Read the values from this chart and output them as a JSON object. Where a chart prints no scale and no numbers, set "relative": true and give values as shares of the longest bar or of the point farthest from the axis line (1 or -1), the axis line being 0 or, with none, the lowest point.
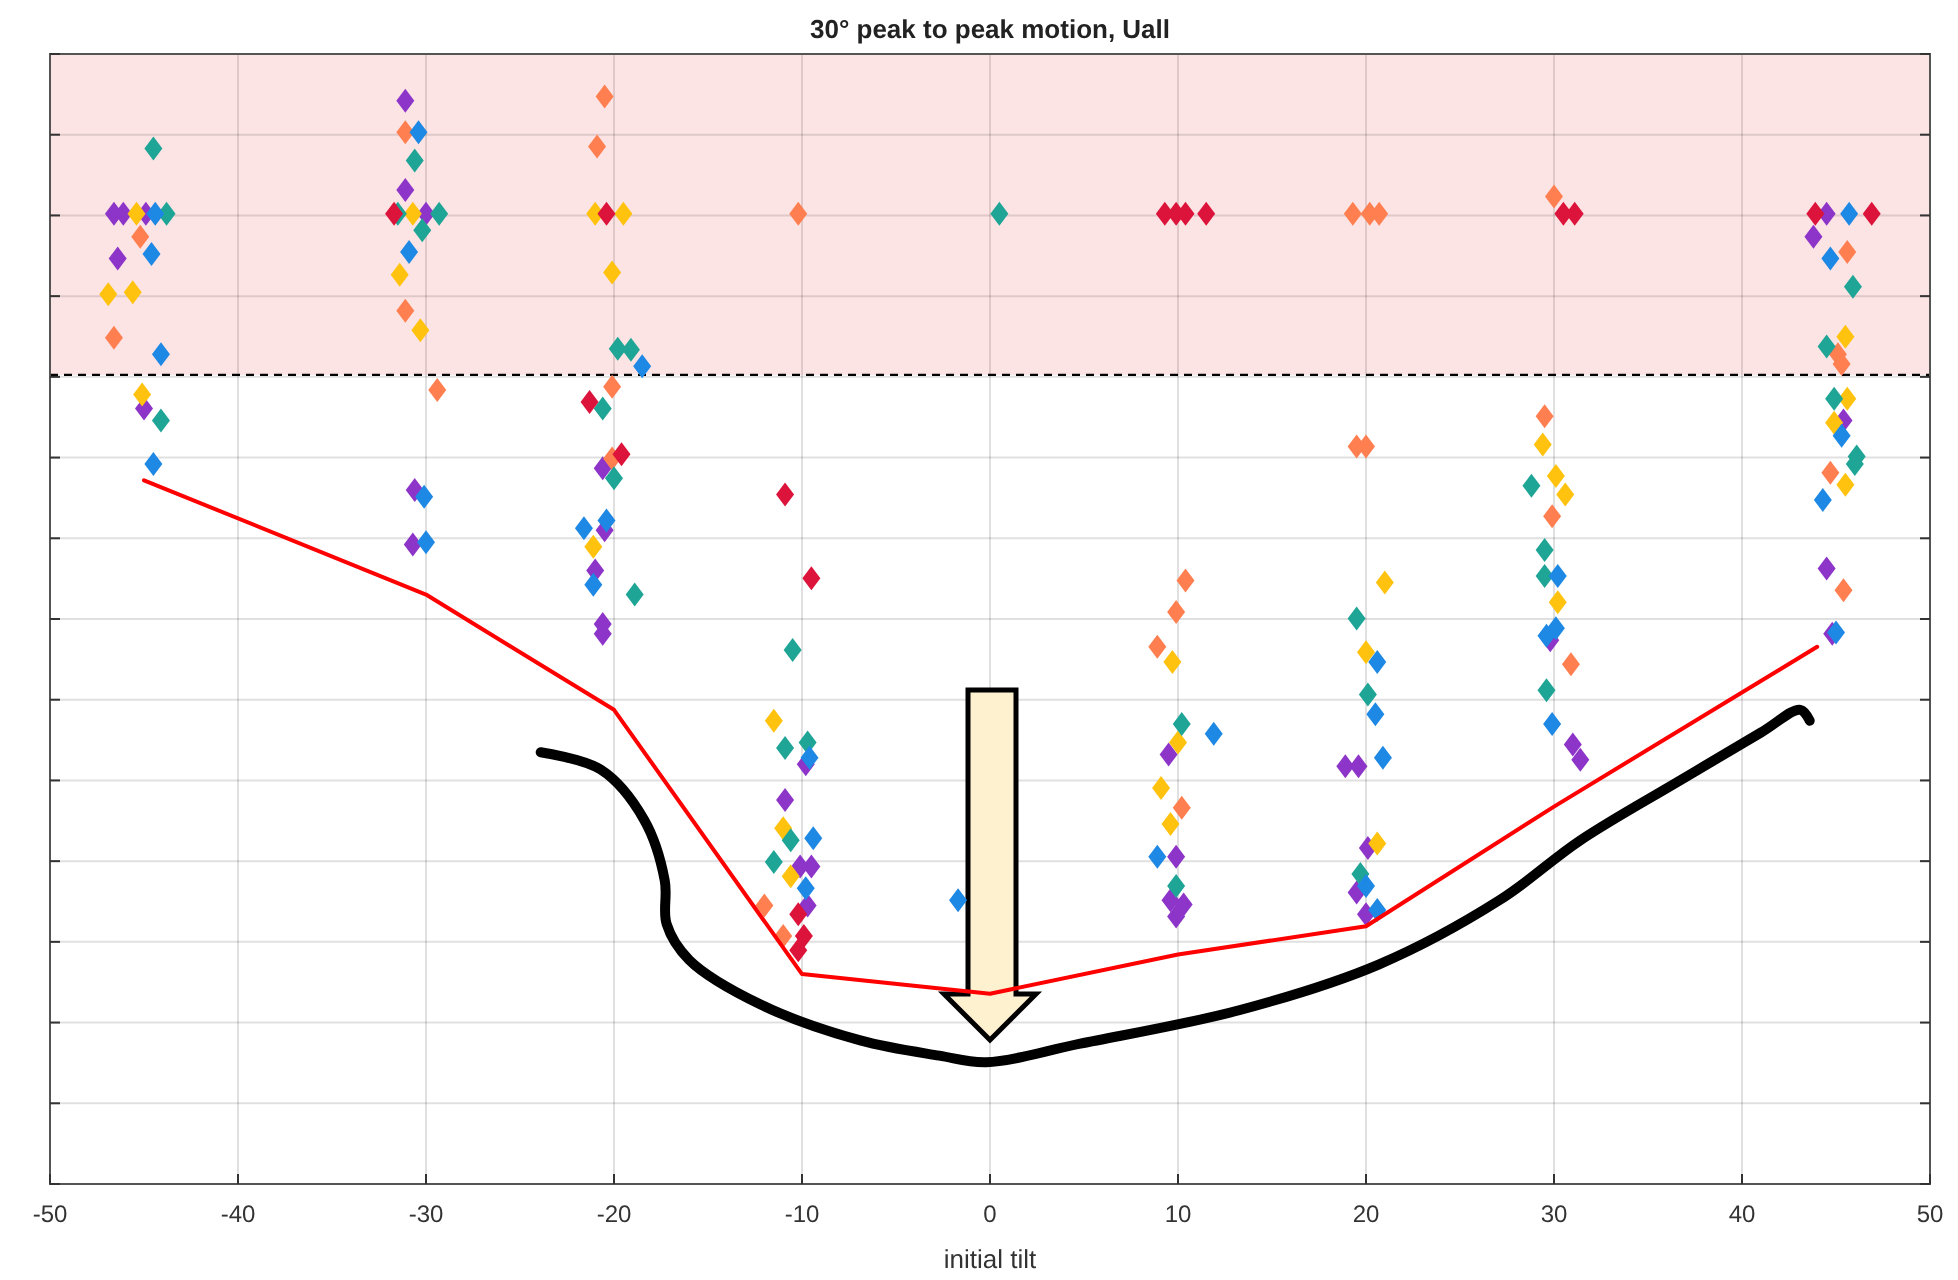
{
  "chart_data": {
    "type": "scatter",
    "title": "30° peak to peak motion, Uall",
    "xlabel": "initial tilt",
    "relative": true,
    "marker": "diamond",
    "grid": true,
    "xlim": [
      -50,
      50
    ],
    "xticks": [
      -50,
      -40,
      -30,
      -20,
      -10,
      0,
      10,
      20,
      30,
      40,
      50
    ],
    "bands": [
      {
        "axis": "y",
        "from": 0.744,
        "to": 1.039,
        "color": "#fde4e4"
      }
    ],
    "ref_lines": [
      {
        "axis": "y",
        "value": 0.744,
        "line_style": "dashed",
        "color": "#000000"
      }
    ],
    "series": [
      {
        "color": "#8e35c9",
        "x": [
          -46.6,
          -46.1,
          -44.9,
          -46.4,
          -45.0,
          -31.1,
          -31.1,
          -30.0,
          -30.6,
          -30.7,
          -20.6,
          -20.5,
          -21.0,
          -20.6,
          -20.6,
          -9.8,
          -10.9,
          -10.1,
          -9.5,
          -9.7,
          9.5,
          9.9,
          9.6,
          10.3,
          9.9,
          18.9,
          19.6,
          20.1,
          19.5,
          20.0,
          29.8,
          31.0,
          31.4,
          44.5,
          43.8,
          45.4,
          44.5,
          44.8
        ],
        "values": [
          0.892,
          0.892,
          0.892,
          0.851,
          0.713,
          0.996,
          0.914,
          0.892,
          0.638,
          0.588,
          0.658,
          0.601,
          0.564,
          0.515,
          0.506,
          0.386,
          0.353,
          0.292,
          0.292,
          0.256,
          0.395,
          0.301,
          0.261,
          0.257,
          0.246,
          0.384,
          0.384,
          0.309,
          0.268,
          0.248,
          0.5,
          0.404,
          0.39,
          0.892,
          0.871,
          0.702,
          0.566,
          0.506
        ]
      },
      {
        "color": "#ff7f50",
        "x": [
          -45.2,
          -46.6,
          -31.1,
          -31.1,
          -29.4,
          -20.5,
          -20.9,
          -20.1,
          -20.1,
          -10.2,
          -12.0,
          -11.0,
          10.4,
          9.9,
          8.9,
          10.2,
          19.3,
          20.2,
          20.7,
          20.0,
          19.5,
          30.0,
          29.5,
          29.9,
          30.9,
          45.6,
          45.1,
          45.3,
          44.7,
          45.4
        ],
        "values": [
          0.871,
          0.778,
          0.967,
          0.803,
          0.73,
          1,
          0.954,
          0.733,
          0.667,
          0.892,
          0.256,
          0.228,
          0.555,
          0.526,
          0.494,
          0.346,
          0.892,
          0.892,
          0.892,
          0.678,
          0.678,
          0.908,
          0.706,
          0.614,
          0.478,
          0.857,
          0.763,
          0.754,
          0.654,
          0.546
        ]
      },
      {
        "color": "#ffc20e",
        "x": [
          -45.4,
          -46.9,
          -45.6,
          -45.1,
          -30.7,
          -31.4,
          -30.3,
          -21.0,
          -19.5,
          -20.1,
          -21.1,
          -11.5,
          -11.0,
          -10.6,
          9.7,
          10.0,
          9.1,
          9.6,
          21.0,
          20.0,
          20.6,
          29.4,
          30.1,
          30.6,
          30.2,
          45.5,
          45.6,
          44.9,
          45.5
        ],
        "values": [
          0.892,
          0.818,
          0.82,
          0.726,
          0.892,
          0.836,
          0.785,
          0.892,
          0.892,
          0.838,
          0.586,
          0.426,
          0.327,
          0.283,
          0.48,
          0.406,
          0.364,
          0.331,
          0.553,
          0.489,
          0.313,
          0.68,
          0.651,
          0.634,
          0.535,
          0.779,
          0.722,
          0.7,
          0.643
        ]
      },
      {
        "color": "#1fa596",
        "x": [
          -44.5,
          -43.8,
          -44.1,
          -30.6,
          -31.5,
          -29.3,
          -30.2,
          -19.8,
          -19.1,
          -20.6,
          -20.0,
          -18.9,
          -10.5,
          -10.9,
          -9.7,
          -10.6,
          -11.5,
          0.5,
          10.2,
          9.9,
          19.5,
          20.1,
          19.7,
          28.8,
          29.5,
          29.5,
          29.6,
          45.9,
          44.5,
          44.9,
          46.1,
          46.0
        ],
        "values": [
          0.952,
          0.892,
          0.702,
          0.941,
          0.892,
          0.892,
          0.877,
          0.768,
          0.767,
          0.713,
          0.649,
          0.542,
          0.491,
          0.401,
          0.406,
          0.316,
          0.296,
          0.892,
          0.423,
          0.274,
          0.52,
          0.45,
          0.285,
          0.642,
          0.583,
          0.559,
          0.454,
          0.825,
          0.77,
          0.722,
          0.669,
          0.662
        ]
      },
      {
        "color": "#1e88e5",
        "x": [
          -44.4,
          -44.6,
          -44.1,
          -44.5,
          -30.4,
          -30.9,
          -30.1,
          -30.0,
          -18.5,
          -21.6,
          -20.4,
          -21.1,
          -9.6,
          -9.4,
          -9.8,
          -1.7,
          11.9,
          8.9,
          20.6,
          20.5,
          20.9,
          20.0,
          20.6,
          30.2,
          30.1,
          29.6,
          29.9,
          45.7,
          44.7,
          45.3,
          44.3,
          45.0
        ],
        "values": [
          0.892,
          0.855,
          0.763,
          0.662,
          0.967,
          0.857,
          0.632,
          0.59,
          0.752,
          0.603,
          0.61,
          0.551,
          0.392,
          0.318,
          0.272,
          0.261,
          0.414,
          0.301,
          0.48,
          0.432,
          0.392,
          0.274,
          0.252,
          0.559,
          0.511,
          0.504,
          0.423,
          0.892,
          0.851,
          0.688,
          0.629,
          0.507
        ]
      },
      {
        "color": "#dc143c",
        "x": [
          -31.7,
          -20.4,
          -21.3,
          -19.6,
          -10.9,
          -9.5,
          -10.2,
          -9.9,
          -10.2,
          9.3,
          9.9,
          10.4,
          11.5,
          30.5,
          31.1,
          43.9,
          46.9
        ],
        "values": [
          0.892,
          0.892,
          0.719,
          0.671,
          0.634,
          0.557,
          0.248,
          0.228,
          0.215,
          0.892,
          0.892,
          0.892,
          0.892,
          0.892,
          0.892,
          0.892,
          0.892
        ]
      },
      {
        "type": "line",
        "color": "#000000",
        "marker": "none",
        "line_style": "solid",
        "x": [
          -23.9,
          -20.7,
          -18.4,
          -17.3,
          -17.2,
          -16.0,
          -12.2,
          -6.9,
          -2.7,
          -0.2,
          4.8,
          13.3,
          20.7,
          27.1,
          31.4,
          36.7,
          41.0,
          43.1,
          43.6
        ],
        "values": [
          0.397,
          0.381,
          0.335,
          0.279,
          0.239,
          0.206,
          0.165,
          0.132,
          0.118,
          0.112,
          0.129,
          0.16,
          0.202,
          0.261,
          0.316,
          0.371,
          0.415,
          0.436,
          0.426
        ]
      },
      {
        "type": "line",
        "color": "#ff0000",
        "marker": "none",
        "line_style": "solid",
        "x": [
          -45,
          -30,
          -20,
          -10,
          0,
          10,
          20,
          30,
          44
        ],
        "values": [
          0.647,
          0.542,
          0.436,
          0.193,
          0.175,
          0.211,
          0.237,
          0.347,
          0.494
        ]
      }
    ]
  }
}
